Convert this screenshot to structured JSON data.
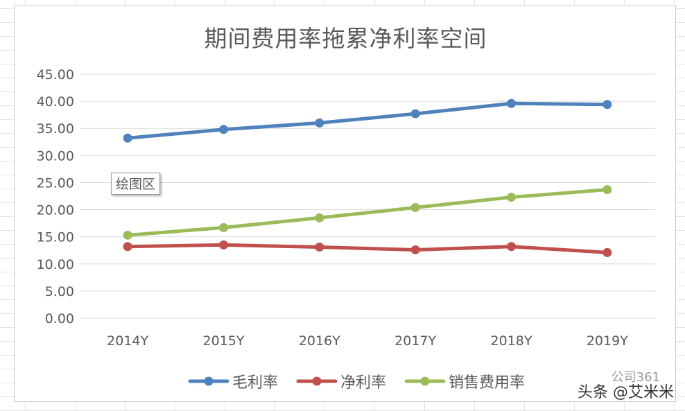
{
  "chart_data": {
    "type": "line",
    "title": "期间费用率拖累净利率空间",
    "categories": [
      "2014Y",
      "2015Y",
      "2016Y",
      "2017Y",
      "2018Y",
      "2019Y"
    ],
    "ylim": [
      0,
      45
    ],
    "ytick_step": 5,
    "ytick_labels": [
      "0.00",
      "5.00",
      "10.00",
      "15.00",
      "20.00",
      "25.00",
      "30.00",
      "35.00",
      "40.00",
      "45.00"
    ],
    "grid": true,
    "legend_position": "bottom",
    "series": [
      {
        "name": "毛利率",
        "color": "#4f81bd",
        "values": [
          33.2,
          34.8,
          36.0,
          37.7,
          39.6,
          39.4
        ]
      },
      {
        "name": "净利率",
        "color": "#c0504d",
        "values": [
          13.2,
          13.5,
          13.1,
          12.6,
          13.2,
          12.1
        ]
      },
      {
        "name": "销售费用率",
        "color": "#9bbb59",
        "values": [
          15.3,
          16.7,
          18.5,
          20.4,
          22.3,
          23.7
        ]
      }
    ]
  },
  "tooltip": {
    "label": "绘图区"
  },
  "watermark": {
    "text": "头条 @艾米米",
    "secondary": "公司361"
  }
}
